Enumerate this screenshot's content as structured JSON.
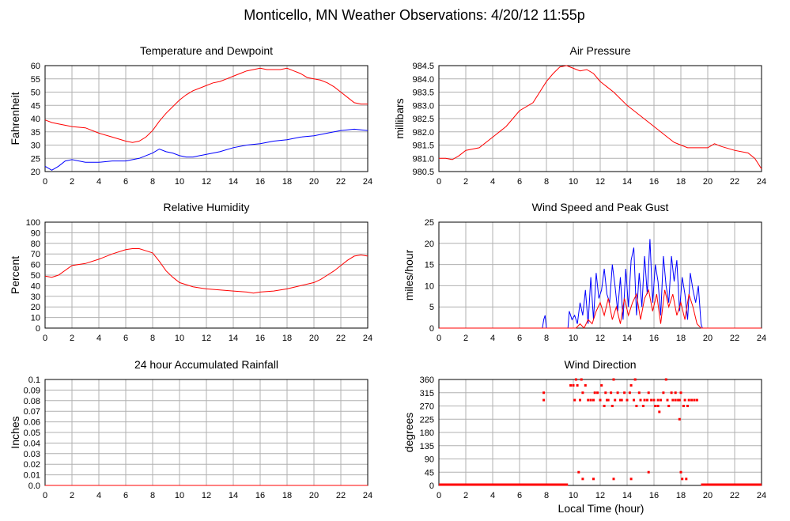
{
  "page": {
    "title": "Monticello, MN Weather Observations: 4/20/12 11:55p",
    "xlabel": "Local Time (hour)"
  },
  "colors": {
    "primary": "#ff0000",
    "secondary": "#0000ff",
    "grid": "#b0b0b0"
  },
  "chart_data": [
    {
      "id": "temp",
      "type": "line",
      "title": "Temperature and Dewpoint",
      "ylabel": "Fahrenheit",
      "xlim": [
        0,
        24
      ],
      "ylim": [
        20,
        60
      ],
      "xticks": [
        0,
        2,
        4,
        6,
        8,
        10,
        12,
        14,
        16,
        18,
        20,
        22,
        24
      ],
      "yticks": [
        20,
        25,
        30,
        35,
        40,
        45,
        50,
        55,
        60
      ],
      "grid": true,
      "series": [
        {
          "color": "#ff0000",
          "x": [
            0,
            0.5,
            1,
            2,
            3,
            4,
            5,
            6,
            6.5,
            7,
            7.5,
            8,
            8.5,
            9,
            9.5,
            10,
            10.5,
            11,
            11.5,
            12,
            12.5,
            13,
            13.5,
            14,
            14.5,
            15,
            15.5,
            16,
            16.5,
            17,
            17.5,
            18,
            18.5,
            19,
            19.5,
            20,
            20.5,
            21,
            21.5,
            22,
            22.5,
            23,
            23.5,
            24
          ],
          "y": [
            39.5,
            38.5,
            38,
            37,
            36.5,
            34.5,
            33,
            31.5,
            31,
            31.5,
            33,
            35.5,
            39,
            42,
            44.5,
            47,
            49,
            50.5,
            51.5,
            52.5,
            53.5,
            54,
            55,
            56,
            57,
            58,
            58.5,
            59,
            58.5,
            58.5,
            58.5,
            59,
            58,
            57,
            55.5,
            55,
            54.5,
            53.5,
            52,
            50,
            48,
            46,
            45.5,
            45.5
          ]
        },
        {
          "color": "#0000ff",
          "x": [
            0,
            0.5,
            1,
            1.5,
            2,
            3,
            4,
            5,
            6,
            7,
            8,
            8.5,
            9,
            9.5,
            10,
            10.5,
            11,
            11.5,
            12,
            13,
            14,
            15,
            16,
            17,
            18,
            19,
            20,
            21,
            22,
            23,
            24
          ],
          "y": [
            22,
            20.5,
            22,
            24,
            24.5,
            23.5,
            23.5,
            24,
            24,
            25,
            27,
            28.5,
            27.5,
            27,
            26,
            25.5,
            25.5,
            26,
            26.5,
            27.5,
            29,
            30,
            30.5,
            31.5,
            32,
            33,
            33.5,
            34.5,
            35.5,
            36,
            35.5
          ]
        }
      ]
    },
    {
      "id": "pressure",
      "type": "line",
      "title": "Air Pressure",
      "ylabel": "millibars",
      "xlim": [
        0,
        24
      ],
      "ylim": [
        980.5,
        984.5
      ],
      "xticks": [
        0,
        2,
        4,
        6,
        8,
        10,
        12,
        14,
        16,
        18,
        20,
        22,
        24
      ],
      "yticks": [
        980.5,
        981.0,
        981.5,
        982.0,
        982.5,
        983.0,
        983.5,
        984.0,
        984.5
      ],
      "ytick_labels": [
        "980.5",
        "981.0",
        "981.5",
        "982.0",
        "982.5",
        "983.0",
        "983.5",
        "984.0",
        "984.5"
      ],
      "grid": true,
      "series": [
        {
          "color": "#ff0000",
          "x": [
            0,
            0.5,
            1,
            1.5,
            2,
            3,
            4,
            5,
            6,
            7,
            7.5,
            8,
            8.5,
            9,
            9.5,
            10,
            10.5,
            11,
            11.5,
            12,
            12.5,
            13,
            14,
            15,
            16,
            17,
            17.5,
            18,
            18.5,
            19,
            20,
            20.5,
            21,
            22,
            23,
            23.5,
            24
          ],
          "y": [
            981.0,
            981.0,
            980.95,
            981.1,
            981.3,
            981.4,
            981.8,
            982.2,
            982.8,
            983.1,
            983.5,
            983.9,
            984.2,
            984.45,
            984.5,
            984.4,
            984.3,
            984.35,
            984.2,
            983.9,
            983.7,
            983.5,
            983.0,
            982.6,
            982.2,
            981.8,
            981.6,
            981.5,
            981.4,
            981.4,
            981.4,
            981.55,
            981.45,
            981.3,
            981.2,
            981.0,
            980.6
          ]
        }
      ]
    },
    {
      "id": "humidity",
      "type": "line",
      "title": "Relative Humidity",
      "ylabel": "Percent",
      "xlim": [
        0,
        24
      ],
      "ylim": [
        0,
        100
      ],
      "xticks": [
        0,
        2,
        4,
        6,
        8,
        10,
        12,
        14,
        16,
        18,
        20,
        22,
        24
      ],
      "yticks": [
        0,
        10,
        20,
        30,
        40,
        50,
        60,
        70,
        80,
        90,
        100
      ],
      "grid": true,
      "series": [
        {
          "color": "#ff0000",
          "x": [
            0,
            0.5,
            1,
            2,
            3,
            4,
            5,
            6,
            6.5,
            7,
            7.5,
            8,
            8.5,
            9,
            9.5,
            10,
            10.5,
            11,
            11.5,
            12,
            13,
            14,
            15,
            15.5,
            16,
            17,
            18,
            19,
            20,
            20.5,
            21,
            21.5,
            22,
            22.5,
            23,
            23.5,
            24
          ],
          "y": [
            49,
            48,
            50,
            59,
            61,
            65,
            70,
            74,
            75,
            75,
            73,
            71,
            63,
            54,
            48,
            43,
            41,
            39,
            38,
            37,
            36,
            35,
            34,
            33,
            34,
            35,
            37,
            40,
            43,
            46,
            50,
            54,
            59,
            64,
            68,
            69,
            68
          ]
        }
      ]
    },
    {
      "id": "wind",
      "type": "line",
      "title": "Wind Speed and Peak Gust",
      "ylabel": "miles/hour",
      "xlim": [
        0,
        24
      ],
      "ylim": [
        0,
        25
      ],
      "xticks": [
        0,
        2,
        4,
        6,
        8,
        10,
        12,
        14,
        16,
        18,
        20,
        22,
        24
      ],
      "yticks": [
        0,
        5,
        10,
        15,
        20,
        25
      ],
      "grid": true,
      "series": [
        {
          "color": "#0000ff",
          "x": [
            0,
            7.7,
            7.8,
            7.9,
            8.0,
            9.6,
            9.7,
            9.9,
            10.1,
            10.3,
            10.5,
            10.7,
            10.9,
            11.1,
            11.3,
            11.5,
            11.7,
            11.9,
            12.1,
            12.3,
            12.5,
            12.7,
            12.9,
            13.1,
            13.3,
            13.5,
            13.7,
            13.9,
            14.1,
            14.3,
            14.5,
            14.7,
            14.9,
            15.1,
            15.3,
            15.5,
            15.7,
            15.9,
            16.1,
            16.3,
            16.5,
            16.7,
            16.9,
            17.1,
            17.3,
            17.5,
            17.7,
            17.9,
            18.1,
            18.3,
            18.5,
            18.7,
            18.9,
            19.1,
            19.3,
            19.5,
            19.6,
            24
          ],
          "y": [
            0,
            0,
            2,
            3,
            0,
            0,
            4,
            2,
            3,
            1,
            6,
            3,
            9,
            1,
            12,
            2,
            13,
            7,
            9,
            14,
            8,
            6,
            15,
            10,
            4,
            12,
            2,
            14,
            5,
            16,
            19,
            3,
            13,
            5,
            17,
            8,
            21,
            6,
            15,
            11,
            3,
            17,
            10,
            6,
            17,
            11,
            16,
            4,
            12,
            8,
            2,
            13,
            9,
            6,
            10,
            1,
            0,
            0
          ]
        },
        {
          "color": "#ff0000",
          "x": [
            0,
            10.2,
            10.5,
            10.8,
            11.1,
            11.4,
            11.7,
            12.0,
            12.3,
            12.6,
            12.9,
            13.2,
            13.5,
            13.8,
            14.1,
            14.4,
            14.7,
            15.0,
            15.3,
            15.6,
            15.9,
            16.2,
            16.5,
            16.8,
            17.1,
            17.4,
            17.7,
            18.0,
            18.3,
            18.6,
            18.9,
            19.2,
            19.5,
            24
          ],
          "y": [
            0,
            0,
            1,
            0,
            2,
            1,
            4,
            6,
            3,
            7,
            2,
            5,
            1,
            7,
            3,
            6,
            8,
            2,
            7,
            9,
            4,
            8,
            1,
            9,
            5,
            8,
            3,
            6,
            2,
            8,
            5,
            1,
            0,
            0
          ]
        }
      ]
    },
    {
      "id": "rain",
      "type": "line",
      "title": "24 hour Accumulated Rainfall",
      "ylabel": "Inches",
      "xlim": [
        0,
        24
      ],
      "ylim": [
        0,
        0.1
      ],
      "xticks": [
        0,
        2,
        4,
        6,
        8,
        10,
        12,
        14,
        16,
        18,
        20,
        22,
        24
      ],
      "yticks": [
        0.0,
        0.01,
        0.02,
        0.03,
        0.04,
        0.05,
        0.06,
        0.07,
        0.08,
        0.09,
        0.1
      ],
      "ytick_labels": [
        "0.0",
        "0.01",
        "0.02",
        "0.03",
        "0.04",
        "0.05",
        "0.06",
        "0.07",
        "0.08",
        "0.09",
        "0.1"
      ],
      "grid": true,
      "series": [
        {
          "color": "#ff0000",
          "x": [
            0,
            24
          ],
          "y": [
            0,
            0
          ]
        }
      ]
    },
    {
      "id": "direction",
      "type": "scatter",
      "title": "Wind Direction",
      "ylabel": "degrees",
      "xlim": [
        0,
        24
      ],
      "ylim": [
        0,
        360
      ],
      "xticks": [
        0,
        2,
        4,
        6,
        8,
        10,
        12,
        14,
        16,
        18,
        20,
        22,
        24
      ],
      "yticks": [
        0,
        45,
        90,
        135,
        180,
        225,
        270,
        315,
        360
      ],
      "grid": true,
      "zero_runs": [
        [
          0,
          9.6
        ],
        [
          19.5,
          24
        ]
      ],
      "series": [
        {
          "color": "#ff0000",
          "x": [
            7.8,
            7.8,
            9.8,
            10.0,
            10.1,
            10.2,
            10.3,
            10.5,
            10.6,
            10.7,
            10.9,
            11.1,
            11.3,
            11.5,
            11.6,
            11.8,
            12.0,
            12.1,
            12.3,
            12.4,
            12.5,
            12.6,
            12.8,
            12.9,
            13.0,
            13.1,
            13.3,
            13.5,
            13.6,
            13.8,
            14.0,
            14.2,
            14.3,
            14.5,
            14.6,
            14.7,
            14.9,
            15.0,
            15.2,
            15.3,
            15.5,
            15.6,
            15.8,
            16.0,
            16.1,
            16.3,
            16.4,
            16.5,
            16.7,
            16.9,
            17.0,
            17.1,
            17.3,
            17.4,
            17.6,
            17.8,
            17.9,
            18.0,
            18.2,
            18.3,
            18.5,
            18.6,
            18.8,
            19.0,
            19.2,
            10.4,
            10.7,
            11.5,
            13.0,
            14.3,
            15.6,
            18.0,
            18.1,
            18.4,
            16.3,
            17.6,
            17.9
          ],
          "y": [
            315,
            290,
            340,
            340,
            290,
            360,
            340,
            290,
            360,
            315,
            340,
            290,
            290,
            290,
            315,
            315,
            290,
            340,
            270,
            315,
            290,
            290,
            315,
            270,
            360,
            290,
            315,
            290,
            290,
            315,
            290,
            315,
            340,
            290,
            360,
            270,
            315,
            290,
            270,
            290,
            290,
            315,
            290,
            290,
            270,
            270,
            250,
            290,
            315,
            360,
            290,
            270,
            315,
            290,
            315,
            290,
            225,
            315,
            270,
            290,
            270,
            290,
            290,
            290,
            290,
            45,
            22,
            22,
            22,
            22,
            45,
            45,
            22,
            22,
            290,
            290,
            290
          ]
        }
      ]
    }
  ]
}
